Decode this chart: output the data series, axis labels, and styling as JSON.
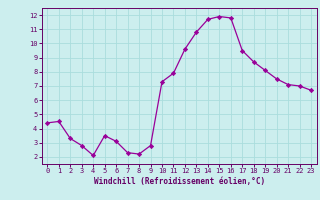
{
  "x": [
    0,
    1,
    2,
    3,
    4,
    5,
    6,
    7,
    8,
    9,
    10,
    11,
    12,
    13,
    14,
    15,
    16,
    17,
    18,
    19,
    20,
    21,
    22,
    23
  ],
  "y": [
    4.4,
    4.5,
    3.3,
    2.8,
    2.1,
    3.5,
    3.1,
    2.3,
    2.2,
    2.8,
    7.3,
    7.9,
    9.6,
    10.8,
    11.7,
    11.9,
    11.8,
    9.5,
    8.7,
    8.1,
    7.5,
    7.1,
    7.0,
    6.7
  ],
  "line_color": "#990099",
  "marker": "D",
  "marker_size": 2.2,
  "bg_color": "#cceeee",
  "grid_color": "#aadddd",
  "xlabel": "Windchill (Refroidissement éolien,°C)",
  "xlabel_color": "#660066",
  "tick_color": "#660066",
  "xlim": [
    -0.5,
    23.5
  ],
  "ylim": [
    1.5,
    12.5
  ],
  "yticks": [
    2,
    3,
    4,
    5,
    6,
    7,
    8,
    9,
    10,
    11,
    12
  ],
  "xticks": [
    0,
    1,
    2,
    3,
    4,
    5,
    6,
    7,
    8,
    9,
    10,
    11,
    12,
    13,
    14,
    15,
    16,
    17,
    18,
    19,
    20,
    21,
    22,
    23
  ]
}
